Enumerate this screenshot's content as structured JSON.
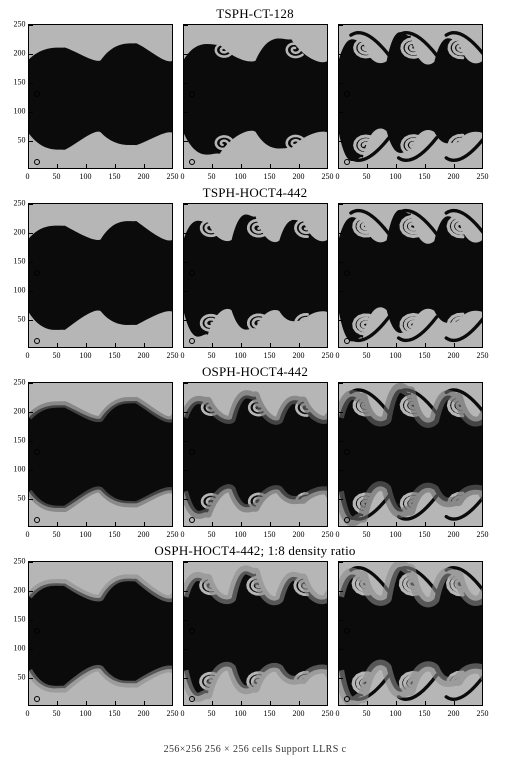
{
  "figure": {
    "background_color": "#ffffff",
    "panel_border_color": "#000000",
    "rows": [
      {
        "title": "TSPH-CT-128",
        "panels": [
          {
            "type": "kh-sim",
            "stage": 1,
            "xlim": [
              0,
              250
            ],
            "ylim": [
              0,
              250
            ],
            "colors": {
              "light": "#b6b6b6",
              "dark": "#0b0b0b"
            },
            "show_yticks": true
          },
          {
            "type": "kh-sim",
            "stage": 2,
            "xlim": [
              0,
              250
            ],
            "ylim": [
              0,
              250
            ],
            "colors": {
              "light": "#b6b6b6",
              "dark": "#0b0b0b"
            },
            "show_yticks": false
          },
          {
            "type": "kh-sim",
            "stage": 3,
            "xlim": [
              0,
              250
            ],
            "ylim": [
              0,
              250
            ],
            "colors": {
              "light": "#b6b6b6",
              "dark": "#0b0b0b"
            },
            "show_yticks": false
          }
        ]
      },
      {
        "title": "TSPH-HOCT4-442",
        "panels": [
          {
            "type": "kh-sim",
            "stage": 1.3,
            "xlim": [
              0,
              250
            ],
            "ylim": [
              0,
              250
            ],
            "colors": {
              "light": "#b6b6b6",
              "dark": "#0b0b0b"
            },
            "show_yticks": true
          },
          {
            "type": "kh-sim",
            "stage": 2.5,
            "xlim": [
              0,
              250
            ],
            "ylim": [
              0,
              250
            ],
            "colors": {
              "light": "#b6b6b6",
              "dark": "#0b0b0b"
            },
            "show_yticks": false
          },
          {
            "type": "kh-sim",
            "stage": 3.3,
            "xlim": [
              0,
              250
            ],
            "ylim": [
              0,
              250
            ],
            "colors": {
              "light": "#b6b6b6",
              "dark": "#0b0b0b"
            },
            "show_yticks": false
          }
        ]
      },
      {
        "title": "OSPH-HOCT4-442",
        "panels": [
          {
            "type": "kh-sim",
            "stage": 1.1,
            "xlim": [
              0,
              250
            ],
            "ylim": [
              0,
              250
            ],
            "colors": {
              "light": "#b6b6b6",
              "dark": "#0b0b0b",
              "mix": "#6b6b6b"
            },
            "show_yticks": true
          },
          {
            "type": "kh-sim",
            "stage": 2.2,
            "xlim": [
              0,
              250
            ],
            "ylim": [
              0,
              250
            ],
            "colors": {
              "light": "#b6b6b6",
              "dark": "#0b0b0b",
              "mix": "#6b6b6b"
            },
            "show_yticks": false
          },
          {
            "type": "kh-sim",
            "stage": 3.2,
            "xlim": [
              0,
              250
            ],
            "ylim": [
              0,
              250
            ],
            "colors": {
              "light": "#b6b6b6",
              "dark": "#0b0b0b",
              "mix": "#6b6b6b"
            },
            "show_yticks": false
          }
        ]
      },
      {
        "title": "OSPH-HOCT4-442; 1:8 density ratio",
        "panels": [
          {
            "type": "kh-sim",
            "stage": 1.4,
            "xlim": [
              0,
              250
            ],
            "ylim": [
              0,
              250
            ],
            "colors": {
              "light": "#b6b6b6",
              "dark": "#0b0b0b",
              "mix": "#8a8a8a"
            },
            "show_yticks": true
          },
          {
            "type": "kh-sim",
            "stage": 2.7,
            "xlim": [
              0,
              250
            ],
            "ylim": [
              0,
              250
            ],
            "colors": {
              "light": "#b6b6b6",
              "dark": "#0b0b0b",
              "mix": "#8a8a8a"
            },
            "show_yticks": false
          },
          {
            "type": "kh-sim",
            "stage": 3.5,
            "xlim": [
              0,
              250
            ],
            "ylim": [
              0,
              250
            ],
            "colors": {
              "light": "#b6b6b6",
              "dark": "#0b0b0b",
              "mix": "#8a8a8a"
            },
            "show_yticks": false
          }
        ]
      }
    ],
    "axis": {
      "xticks": [
        0,
        50,
        100,
        150,
        200,
        250
      ],
      "yticks": [
        50,
        100,
        150,
        200,
        250
      ],
      "tick_fontsize": 8,
      "marker_circles_y": [
        0,
        125
      ]
    },
    "footer": "256×256   256 × 256 cells        Support  LLRS           c"
  }
}
